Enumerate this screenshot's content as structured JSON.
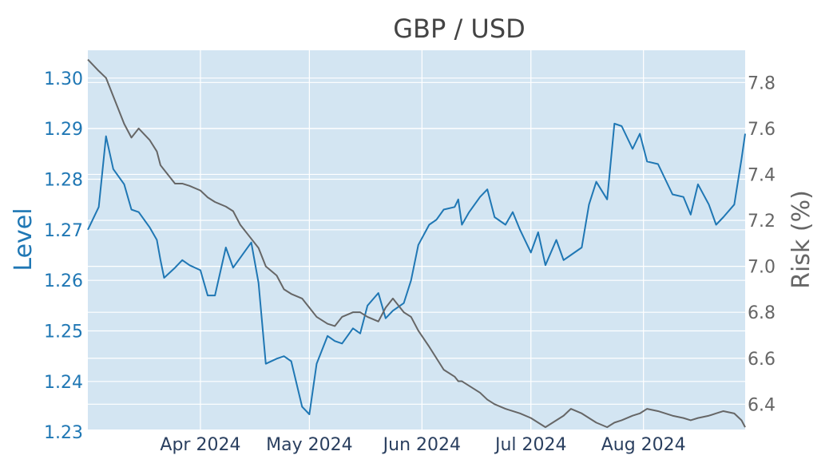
{
  "chart_data": {
    "type": "line",
    "title": "GBP / USD",
    "x_domain": [
      "2024-03-01",
      "2024-08-29"
    ],
    "x_ticks": [
      {
        "date": "2024-04-01",
        "label": "Apr 2024"
      },
      {
        "date": "2024-05-01",
        "label": "May 2024"
      },
      {
        "date": "2024-06-01",
        "label": "Jun 2024"
      },
      {
        "date": "2024-07-01",
        "label": "Jul 2024"
      },
      {
        "date": "2024-08-01",
        "label": "Aug 2024"
      }
    ],
    "y_left": {
      "label": "Level",
      "range": [
        1.2305,
        1.3055
      ],
      "ticks": [
        1.23,
        1.24,
        1.25,
        1.26,
        1.27,
        1.28,
        1.29,
        1.3
      ],
      "tick_labels": [
        "1.23",
        "1.24",
        "1.25",
        "1.26",
        "1.27",
        "1.28",
        "1.29",
        "1.30"
      ],
      "color": "#1f77b4"
    },
    "y_right": {
      "label": "Risk (%)",
      "range": [
        6.29,
        7.94
      ],
      "ticks": [
        6.4,
        6.6,
        6.8,
        7.0,
        7.2,
        7.4,
        7.6,
        7.8
      ],
      "tick_labels": [
        "6.4",
        "6.6",
        "6.8",
        "7.0",
        "7.2",
        "7.4",
        "7.6",
        "7.8"
      ],
      "color": "#666666"
    },
    "grid": true,
    "plot_background": "#d3e5f2",
    "series": [
      {
        "axis": "left",
        "color": "#1f77b4",
        "x": [
          "2024-03-01",
          "2024-03-04",
          "2024-03-06",
          "2024-03-08",
          "2024-03-11",
          "2024-03-13",
          "2024-03-15",
          "2024-03-18",
          "2024-03-20",
          "2024-03-21",
          "2024-03-22",
          "2024-03-25",
          "2024-03-27",
          "2024-03-29",
          "2024-04-01",
          "2024-04-03",
          "2024-04-05",
          "2024-04-08",
          "2024-04-10",
          "2024-04-12",
          "2024-04-15",
          "2024-04-17",
          "2024-04-19",
          "2024-04-22",
          "2024-04-24",
          "2024-04-26",
          "2024-04-29",
          "2024-05-01",
          "2024-05-03",
          "2024-05-06",
          "2024-05-08",
          "2024-05-10",
          "2024-05-13",
          "2024-05-15",
          "2024-05-17",
          "2024-05-20",
          "2024-05-22",
          "2024-05-24",
          "2024-05-27",
          "2024-05-29",
          "2024-05-31",
          "2024-06-03",
          "2024-06-05",
          "2024-06-07",
          "2024-06-10",
          "2024-06-11",
          "2024-06-12",
          "2024-06-14",
          "2024-06-17",
          "2024-06-19",
          "2024-06-21",
          "2024-06-24",
          "2024-06-26",
          "2024-06-28",
          "2024-07-01",
          "2024-07-03",
          "2024-07-05",
          "2024-07-08",
          "2024-07-10",
          "2024-07-12",
          "2024-07-15",
          "2024-07-17",
          "2024-07-19",
          "2024-07-22",
          "2024-07-24",
          "2024-07-26",
          "2024-07-29",
          "2024-07-31",
          "2024-08-02",
          "2024-08-05",
          "2024-08-07",
          "2024-08-09",
          "2024-08-12",
          "2024-08-14",
          "2024-08-16",
          "2024-08-19",
          "2024-08-21",
          "2024-08-23",
          "2024-08-26",
          "2024-08-28",
          "2024-08-29"
        ],
        "values": [
          1.27,
          1.2745,
          1.2885,
          1.282,
          1.279,
          1.274,
          1.2735,
          1.2705,
          1.268,
          1.264,
          1.2605,
          1.2625,
          1.264,
          1.263,
          1.262,
          1.257,
          1.257,
          1.2665,
          1.2625,
          1.2645,
          1.2675,
          1.2595,
          1.2435,
          1.2445,
          1.245,
          1.244,
          1.235,
          1.2335,
          1.2435,
          1.249,
          1.248,
          1.2475,
          1.2505,
          1.2495,
          1.255,
          1.2575,
          1.2525,
          1.254,
          1.2555,
          1.26,
          1.267,
          1.271,
          1.272,
          1.274,
          1.2745,
          1.276,
          1.271,
          1.2735,
          1.2765,
          1.278,
          1.2725,
          1.271,
          1.2735,
          1.27,
          1.2655,
          1.2695,
          1.263,
          1.268,
          1.264,
          1.265,
          1.2665,
          1.275,
          1.2795,
          1.276,
          1.291,
          1.2905,
          1.286,
          1.289,
          1.2835,
          1.283,
          1.28,
          1.277,
          1.2765,
          1.273,
          1.279,
          1.275,
          1.271,
          1.2725,
          1.275,
          1.284,
          1.289
        ]
      },
      {
        "axis": "right",
        "color": "#666666",
        "x": [
          "2024-03-01",
          "2024-03-04",
          "2024-03-06",
          "2024-03-08",
          "2024-03-11",
          "2024-03-13",
          "2024-03-15",
          "2024-03-18",
          "2024-03-20",
          "2024-03-21",
          "2024-03-22",
          "2024-03-25",
          "2024-03-27",
          "2024-03-29",
          "2024-04-01",
          "2024-04-03",
          "2024-04-05",
          "2024-04-08",
          "2024-04-10",
          "2024-04-12",
          "2024-04-15",
          "2024-04-17",
          "2024-04-19",
          "2024-04-22",
          "2024-04-24",
          "2024-04-26",
          "2024-04-29",
          "2024-05-01",
          "2024-05-03",
          "2024-05-06",
          "2024-05-08",
          "2024-05-10",
          "2024-05-13",
          "2024-05-15",
          "2024-05-17",
          "2024-05-20",
          "2024-05-22",
          "2024-05-24",
          "2024-05-27",
          "2024-05-29",
          "2024-05-31",
          "2024-06-03",
          "2024-06-05",
          "2024-06-07",
          "2024-06-10",
          "2024-06-11",
          "2024-06-12",
          "2024-06-14",
          "2024-06-17",
          "2024-06-19",
          "2024-06-21",
          "2024-06-24",
          "2024-06-26",
          "2024-06-28",
          "2024-07-01",
          "2024-07-03",
          "2024-07-05",
          "2024-07-08",
          "2024-07-10",
          "2024-07-12",
          "2024-07-15",
          "2024-07-17",
          "2024-07-19",
          "2024-07-22",
          "2024-07-24",
          "2024-07-26",
          "2024-07-29",
          "2024-07-31",
          "2024-08-02",
          "2024-08-05",
          "2024-08-07",
          "2024-08-09",
          "2024-08-12",
          "2024-08-14",
          "2024-08-16",
          "2024-08-19",
          "2024-08-21",
          "2024-08-23",
          "2024-08-26",
          "2024-08-28",
          "2024-08-29"
        ],
        "values": [
          7.9,
          7.85,
          7.82,
          7.74,
          7.62,
          7.56,
          7.6,
          7.55,
          7.5,
          7.44,
          7.42,
          7.36,
          7.36,
          7.35,
          7.33,
          7.3,
          7.28,
          7.26,
          7.24,
          7.18,
          7.12,
          7.08,
          7.0,
          6.96,
          6.9,
          6.88,
          6.86,
          6.82,
          6.78,
          6.75,
          6.74,
          6.78,
          6.8,
          6.8,
          6.78,
          6.76,
          6.82,
          6.86,
          6.8,
          6.78,
          6.72,
          6.65,
          6.6,
          6.55,
          6.52,
          6.5,
          6.5,
          6.48,
          6.45,
          6.42,
          6.4,
          6.38,
          6.37,
          6.36,
          6.34,
          6.32,
          6.3,
          6.33,
          6.35,
          6.38,
          6.36,
          6.34,
          6.32,
          6.3,
          6.32,
          6.33,
          6.35,
          6.36,
          6.38,
          6.37,
          6.36,
          6.35,
          6.34,
          6.33,
          6.34,
          6.35,
          6.36,
          6.37,
          6.36,
          6.33,
          6.3
        ]
      }
    ]
  }
}
